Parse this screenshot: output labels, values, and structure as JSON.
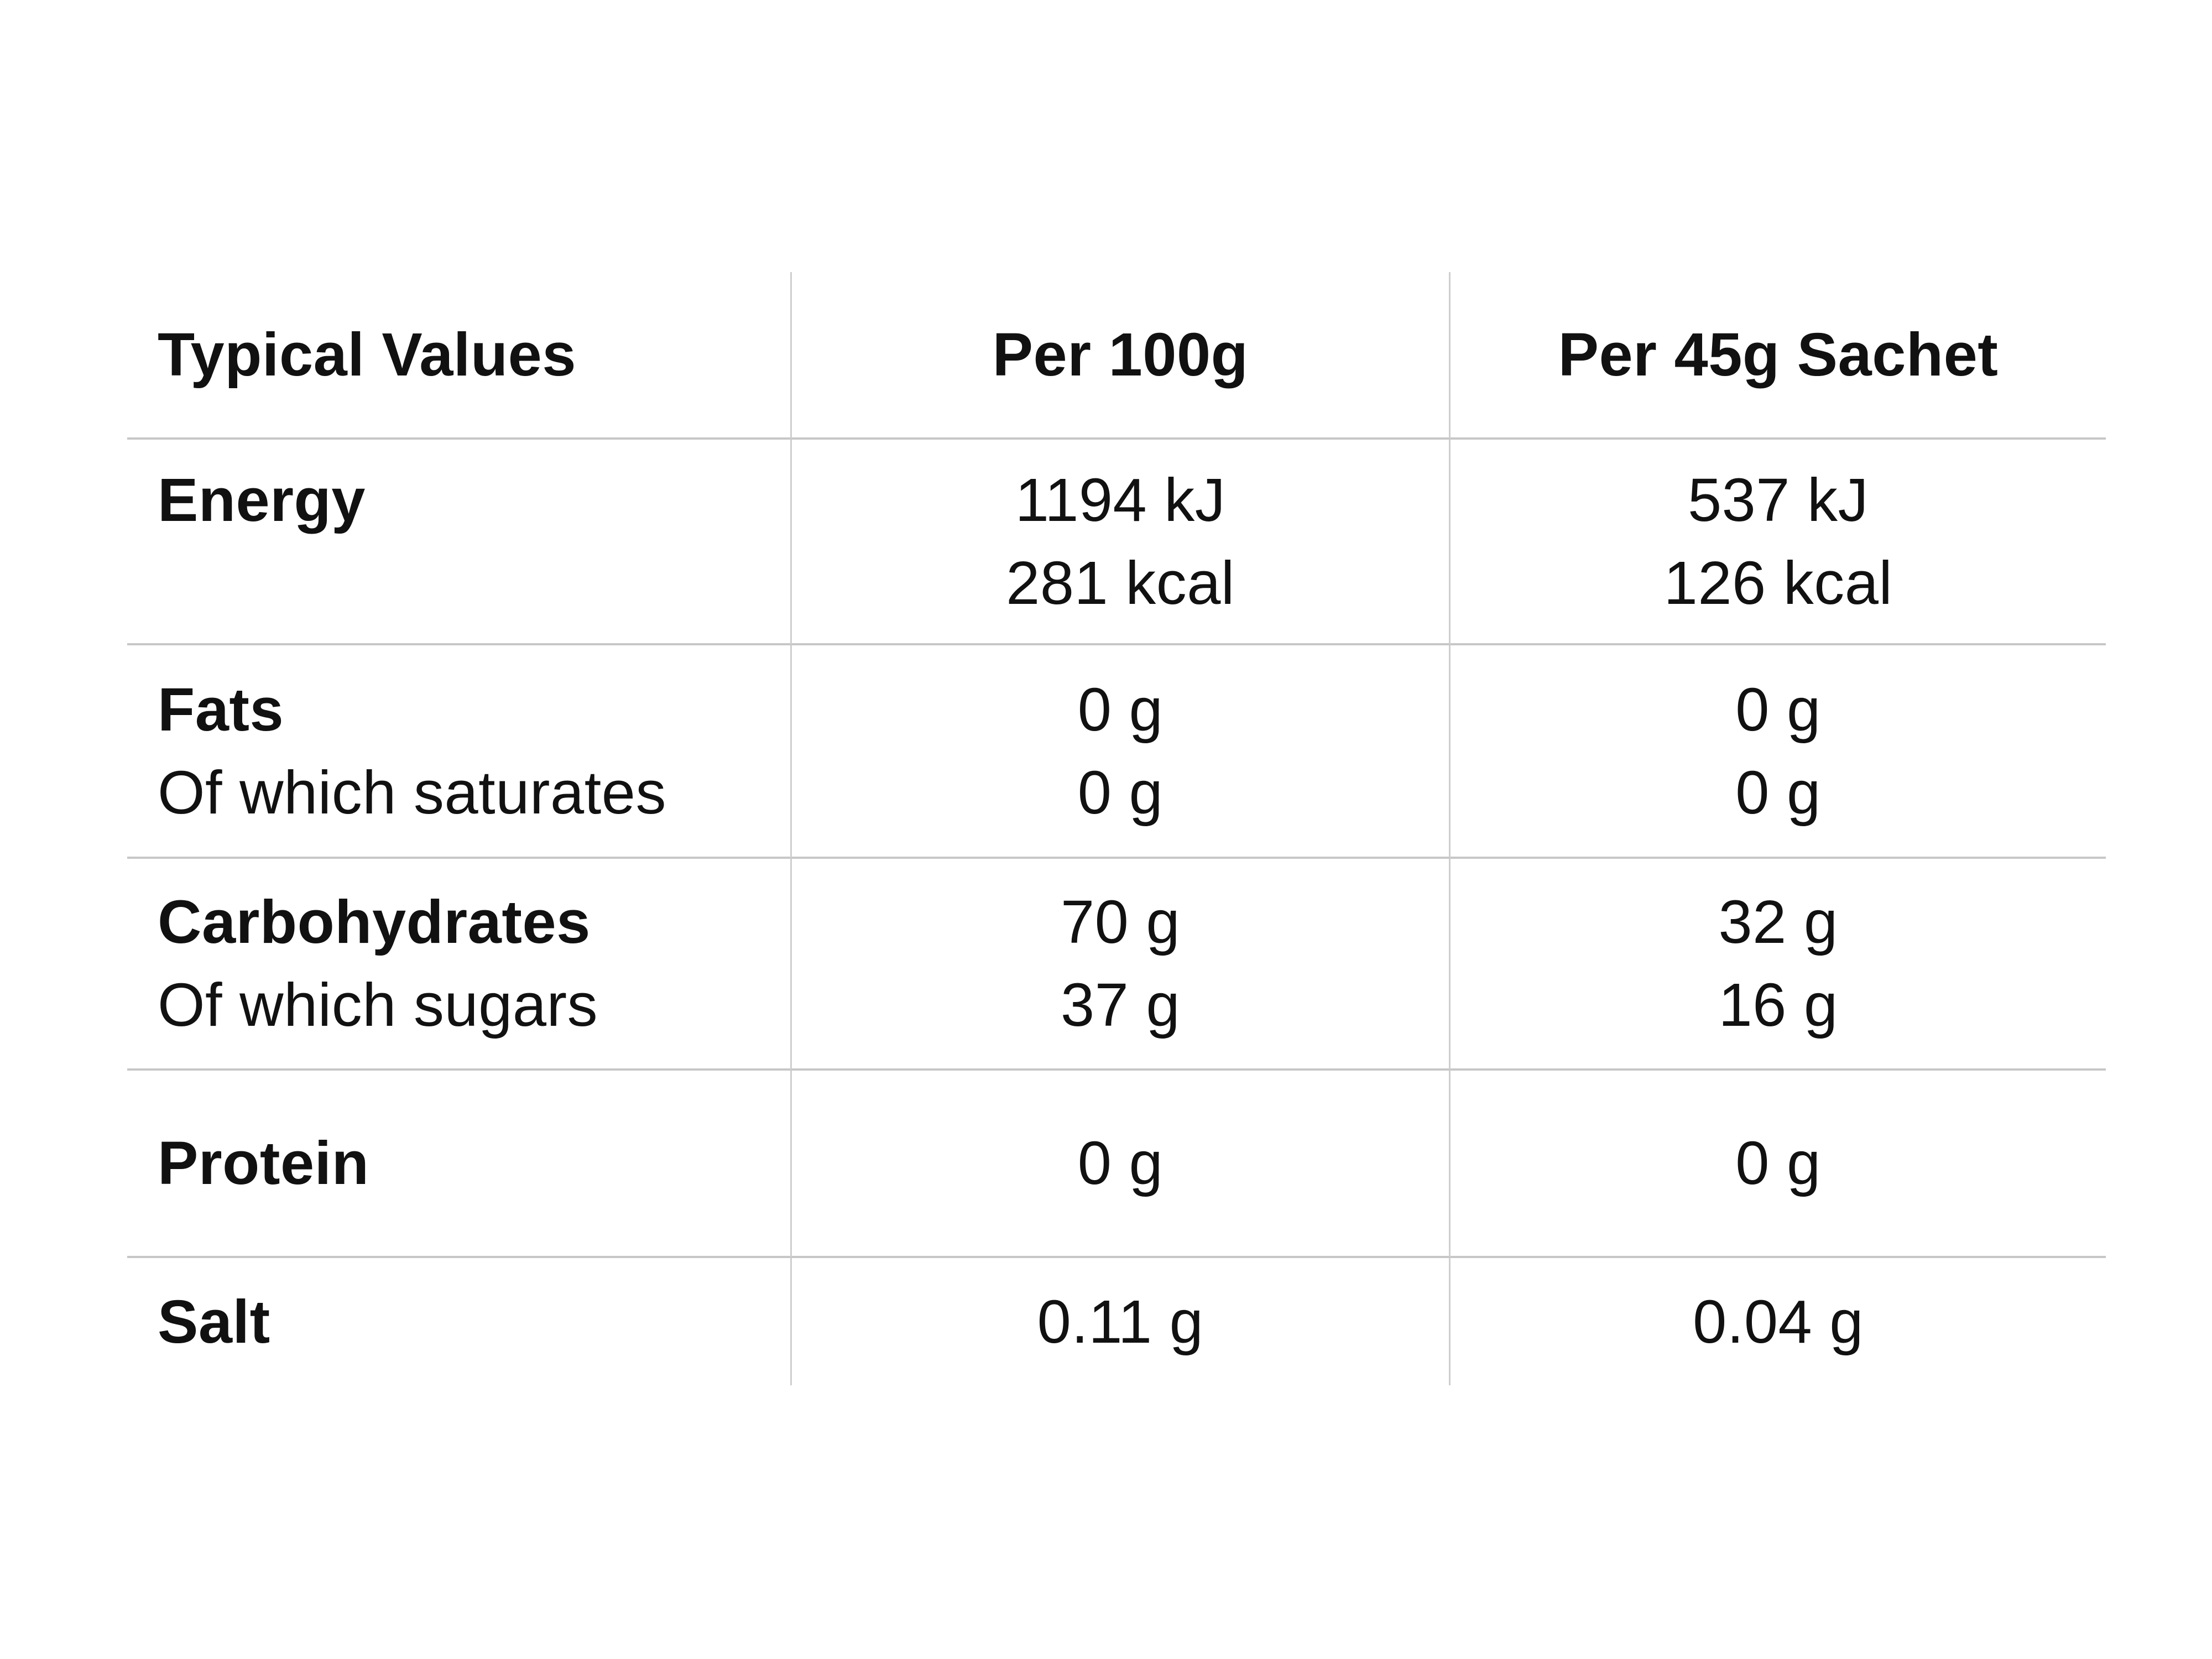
{
  "title": "Nutrition typical values table",
  "colors": {
    "background": "#ffffff",
    "text": "#111111",
    "grid_line": "#c7c7c7"
  },
  "table": {
    "columns": [
      {
        "label": "Typical Values"
      },
      {
        "label": "Per 100g"
      },
      {
        "label": "Per 45g Sachet"
      }
    ],
    "rows": [
      {
        "name": "energy",
        "label_lines": [
          {
            "text": "Energy",
            "bold": true
          },
          {
            "text": "",
            "bold": false
          }
        ],
        "per_100g": [
          "1194 kJ",
          "281 kcal"
        ],
        "per_45g_sachet": [
          "537 kJ",
          "126 kcal"
        ]
      },
      {
        "name": "fats",
        "label_lines": [
          {
            "text": "Fats",
            "bold": true
          },
          {
            "text": "Of which saturates",
            "bold": false
          }
        ],
        "per_100g": [
          "0 g",
          "0 g"
        ],
        "per_45g_sachet": [
          "0 g",
          "0 g"
        ]
      },
      {
        "name": "carbohydrates",
        "label_lines": [
          {
            "text": "Carbohydrates",
            "bold": true
          },
          {
            "text": "Of which sugars",
            "bold": false
          }
        ],
        "per_100g": [
          "70 g",
          "37 g"
        ],
        "per_45g_sachet": [
          "32 g",
          "16 g"
        ]
      },
      {
        "name": "protein",
        "label_lines": [
          {
            "text": "Protein",
            "bold": true
          }
        ],
        "per_100g": [
          "0 g"
        ],
        "per_45g_sachet": [
          "0 g"
        ]
      },
      {
        "name": "salt",
        "label_lines": [
          {
            "text": "Salt",
            "bold": true
          }
        ],
        "per_100g": [
          "0.11 g"
        ],
        "per_45g_sachet": [
          "0.04 g"
        ]
      }
    ]
  }
}
